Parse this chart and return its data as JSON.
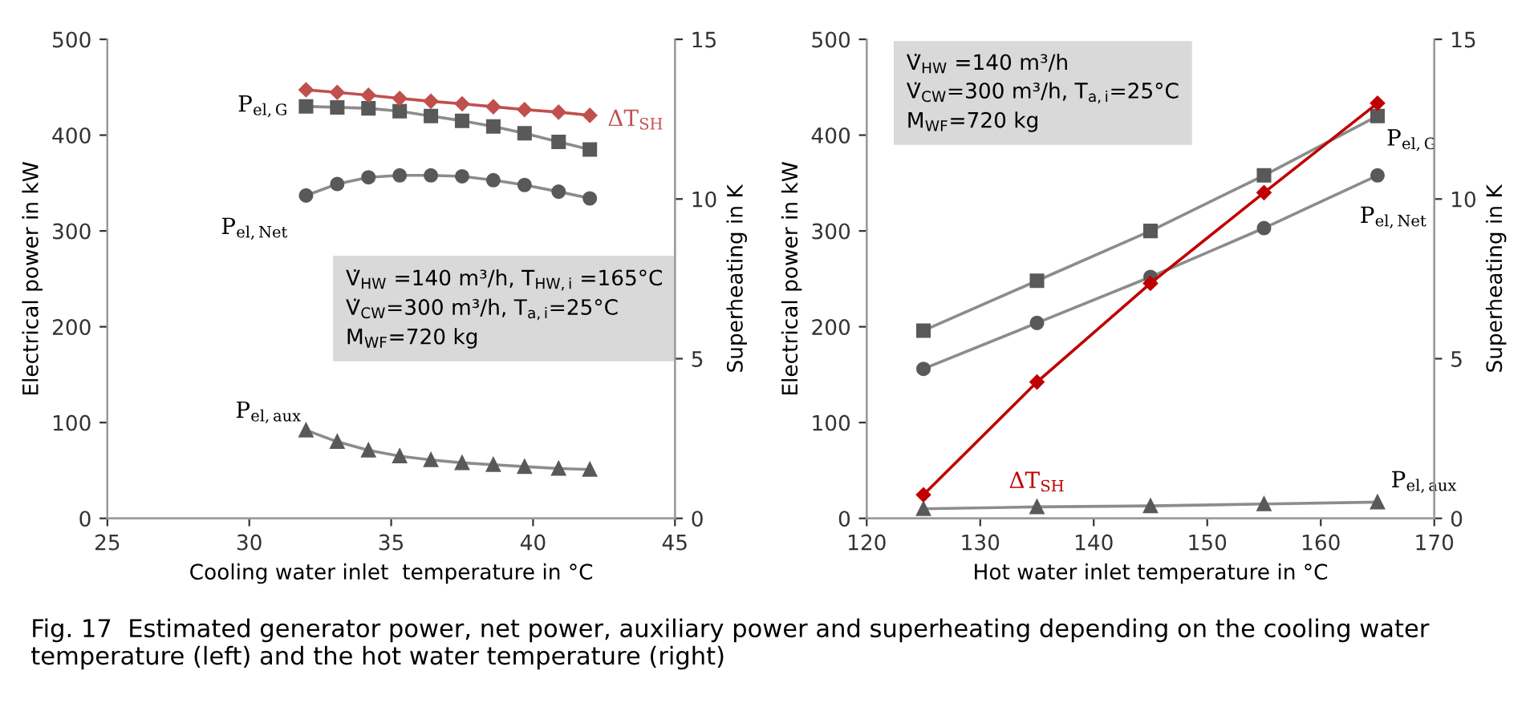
{
  "chart_data": [
    {
      "type": "line",
      "xlabel": "Cooling water inlet  temperature in °C",
      "ylabel": "Electrical power in kW",
      "y2label": "Superheating in K",
      "x": [
        32,
        33.1,
        34.2,
        35.3,
        36.4,
        37.5,
        38.6,
        39.7,
        40.9,
        42
      ],
      "xlim": [
        25,
        45
      ],
      "xticks": [
        25,
        30,
        35,
        40,
        45
      ],
      "ylim": [
        0,
        500
      ],
      "yticks": [
        0,
        100,
        200,
        300,
        400,
        500
      ],
      "y2lim": [
        0,
        15
      ],
      "y2ticks": [
        0,
        5,
        10,
        15
      ],
      "grid": false,
      "legend": false,
      "series": [
        {
          "name": "P$_{el,G}$",
          "color": "#595959",
          "marker": "square",
          "values": [
            430,
            429,
            428,
            425,
            420,
            415,
            409,
            402,
            393,
            385
          ]
        },
        {
          "name": "P$_{el,Net}$",
          "color": "#595959",
          "marker": "circle",
          "values": [
            337,
            349,
            356,
            358,
            358,
            357,
            353,
            348,
            341,
            334
          ]
        },
        {
          "name": "P$_{el,aux}$",
          "color": "#595959",
          "marker": "triangle",
          "values": [
            92,
            80,
            71,
            65,
            61,
            58,
            56,
            54,
            52,
            51
          ]
        },
        {
          "name": "ΔT$_{SH}$",
          "color": "#c0504d",
          "marker": "diamond",
          "axis": "y2",
          "values": [
            13.42,
            13.34,
            13.25,
            13.15,
            13.06,
            12.98,
            12.89,
            12.8,
            12.72,
            12.62
          ]
        }
      ],
      "annotations": [
        "V̇$_{HW}$ =140 m³/h, T$_{HW,i}$ =165°C\nV̇$_{CW}$=300 m³/h, T$_{a,i}$=25°C\nM$_{WF}$=720 kg"
      ]
    },
    {
      "type": "line",
      "xlabel": "Hot water inlet temperature in °C",
      "ylabel": "Electrical power in kW",
      "y2label": "Superheating in K",
      "x": [
        125,
        135,
        145,
        155,
        165
      ],
      "xlim": [
        120,
        170
      ],
      "xticks": [
        120,
        130,
        140,
        150,
        160,
        170
      ],
      "ylim": [
        0,
        500
      ],
      "yticks": [
        0,
        100,
        200,
        300,
        400,
        500
      ],
      "y2lim": [
        0,
        15
      ],
      "y2ticks": [
        0,
        5,
        10,
        15
      ],
      "grid": false,
      "legend": false,
      "series": [
        {
          "name": "P$_{el,G}$",
          "color": "#595959",
          "marker": "square",
          "values": [
            196,
            248,
            300,
            358,
            420
          ]
        },
        {
          "name": "P$_{el,Net}$",
          "color": "#595959",
          "marker": "circle",
          "values": [
            156,
            204,
            252,
            303,
            358
          ]
        },
        {
          "name": "P$_{el,aux}$",
          "color": "#595959",
          "marker": "triangle",
          "values": [
            10,
            12,
            13,
            15,
            17
          ]
        },
        {
          "name": "ΔT$_{SH}$",
          "color": "#c00000",
          "marker": "diamond",
          "axis": "y2",
          "values": [
            0.74,
            4.27,
            7.36,
            10.2,
            13.0
          ]
        }
      ],
      "annotations": [
        "V̇$_{HW}$ =140 m³/h\nV̇$_{CW}$=300 m³/h, T$_{a,i}$=25°C\nM$_{WF}$=720 kg",
        "Fig. 17  Estimated generator power, net power, auxiliary power and superheating depending on the cooling water temperature (left) and the hot water temperature (right)"
      ]
    }
  ]
}
